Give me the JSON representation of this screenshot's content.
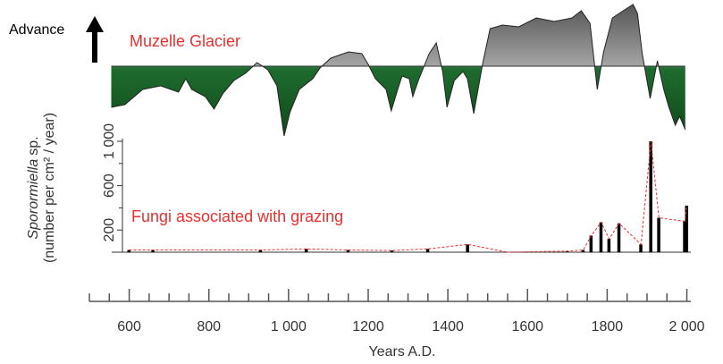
{
  "chart_data": [
    {
      "type": "area",
      "title": "Muzelle Glacier",
      "annotation": "Advance",
      "x": [
        555,
        589,
        634,
        679,
        724,
        742,
        757,
        791,
        813,
        836,
        863,
        892,
        921,
        948,
        971,
        989,
        1004,
        1027,
        1061,
        1079,
        1106,
        1151,
        1184,
        1200,
        1218,
        1245,
        1258,
        1274,
        1285,
        1303,
        1312,
        1326,
        1353,
        1371,
        1387,
        1398,
        1416,
        1438,
        1449,
        1465,
        1488,
        1506,
        1537,
        1578,
        1622,
        1667,
        1712,
        1735,
        1757,
        1775,
        1791,
        1813,
        1847,
        1865,
        1876,
        1888,
        1908,
        1926,
        1942,
        1955,
        1971,
        1982,
        1996
      ],
      "values": [
        -46,
        -43,
        -26,
        -22,
        -29,
        -14,
        -26,
        -34,
        -48,
        -30,
        -16,
        -8,
        4,
        -4,
        -22,
        -78,
        -51,
        -26,
        -14,
        -2,
        9,
        16,
        14,
        2,
        -14,
        -26,
        -50,
        -26,
        -11,
        -14,
        -34,
        -16,
        14,
        26,
        -6,
        -46,
        -16,
        -6,
        -14,
        -53,
        4,
        42,
        46,
        44,
        54,
        50,
        54,
        62,
        48,
        -26,
        16,
        54,
        64,
        69,
        59,
        14,
        -36,
        6,
        -26,
        -46,
        -66,
        -56,
        -71
      ],
      "xlim": [
        500,
        2010
      ],
      "ylim": [
        -80,
        70
      ],
      "color_above": "#9a9a9a",
      "color_below": "#1e6b2e"
    },
    {
      "type": "bar",
      "annotation": "Fungi associated with grazing",
      "ylabel": {
        "taxon": "Sporormiella",
        "rest": "sp."
      },
      "ylabel2": "(number per cm² / year)",
      "xlabel": "Years A.D.",
      "x": [
        600,
        660,
        930,
        1045,
        1150,
        1260,
        1350,
        1450,
        1550,
        1700,
        1740,
        1760,
        1785,
        1805,
        1830,
        1885,
        1910,
        1930,
        1995,
        2000
      ],
      "values": [
        20,
        20,
        20,
        30,
        20,
        15,
        30,
        70,
        0,
        10,
        20,
        150,
        270,
        120,
        260,
        70,
        1000,
        310,
        280,
        420
      ],
      "color": "#000000",
      "line_color": "#e8312f",
      "xlim": [
        500,
        2010
      ],
      "ylim": [
        0,
        1000
      ],
      "yticks": [
        200,
        600,
        {
          "value": 1000,
          "label": "1 000"
        }
      ],
      "yminorticks": [
        0,
        400,
        800
      ],
      "xticks": [
        600,
        800,
        {
          "value": 1000,
          "label": "1 000"
        },
        1200,
        1400,
        1600,
        1800,
        {
          "value": 2000,
          "label": "2 000"
        }
      ],
      "xminorticks": [
        500,
        550,
        650,
        700,
        750,
        850,
        900,
        950,
        1050,
        1100,
        1150,
        1250,
        1300,
        1350,
        1450,
        1500,
        1550,
        1650,
        1700,
        1750,
        1850,
        1900,
        1950
      ]
    }
  ]
}
